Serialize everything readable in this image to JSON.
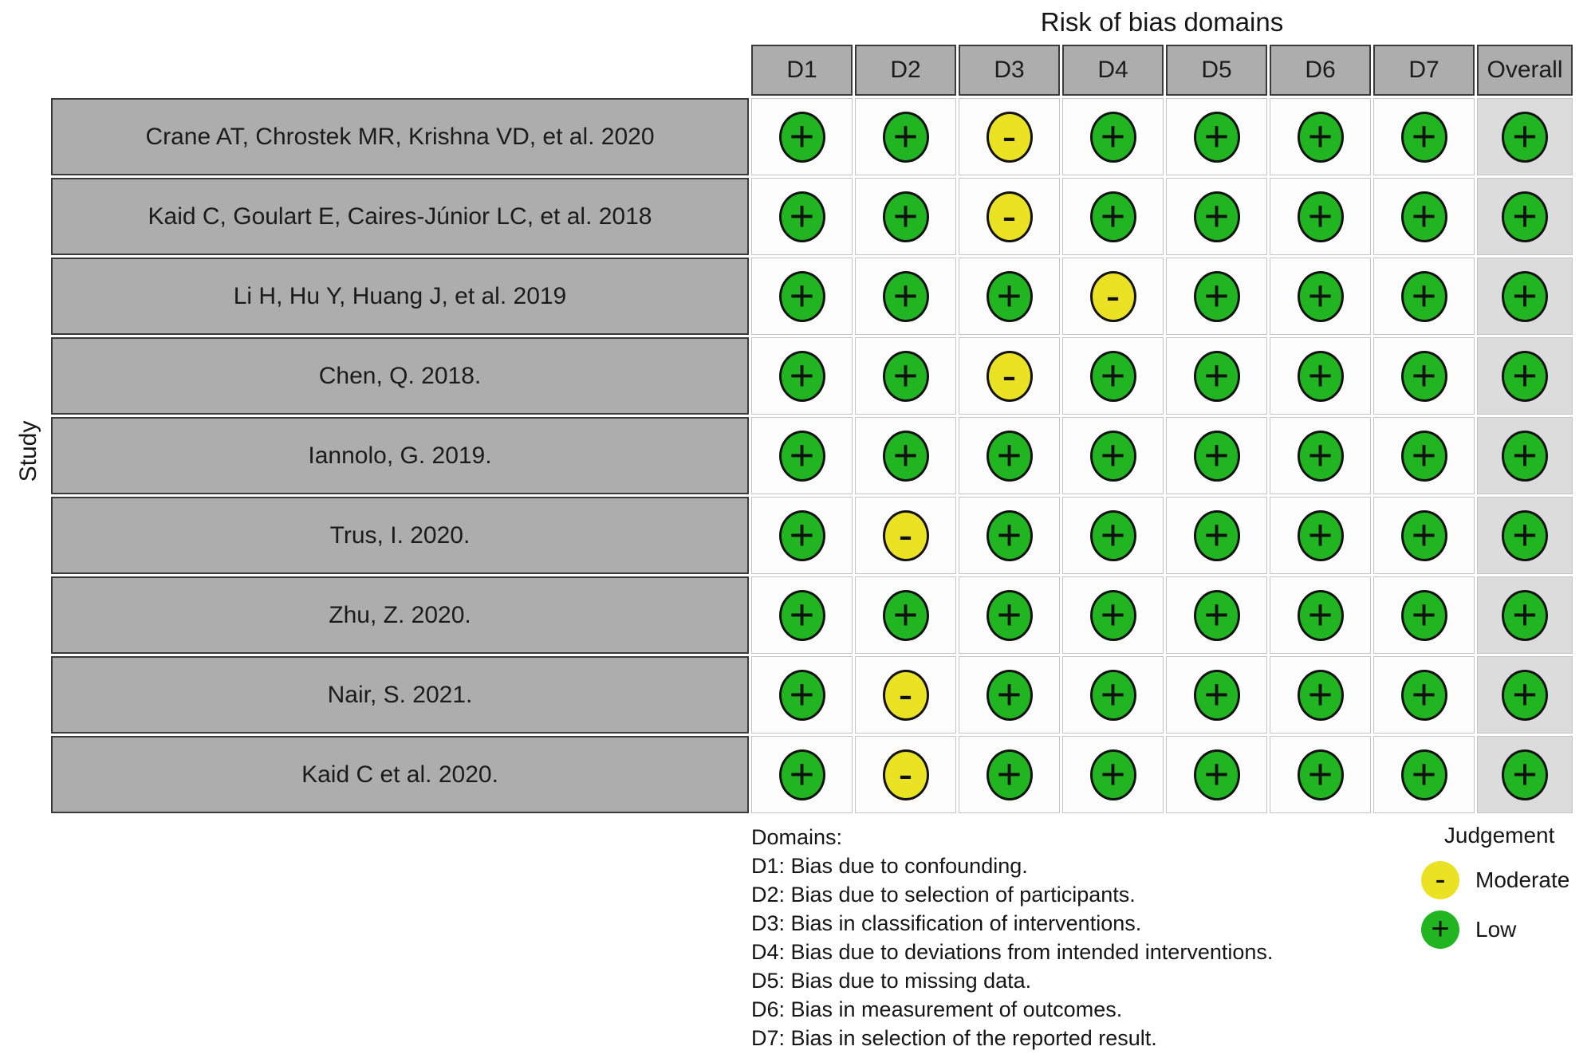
{
  "title": "Risk of bias domains",
  "y_axis_label": "Study",
  "judgement": {
    "low": {
      "symbol": "+",
      "color": "#21b521",
      "label": "Low"
    },
    "moderate": {
      "symbol": "-",
      "color": "#ebe224",
      "label": "Moderate"
    }
  },
  "colors": {
    "header_bg": "#adadad",
    "header_border": "#3a3a3a",
    "cell_bg": "#fdfdfd",
    "cell_border": "#c4c4c4",
    "overall_col_bg": "#dcdcdc",
    "circle_border": "#121212"
  },
  "legend": {
    "domains_title": "Domains:",
    "domain_items": [
      "D1: Bias due to confounding.",
      "D2: Bias due to selection of participants.",
      "D3: Bias in classification of interventions.",
      "D4: Bias due to deviations from intended interventions.",
      "D5: Bias due to missing data.",
      "D6: Bias in measurement of outcomes.",
      "D7: Bias in selection of the reported result."
    ],
    "judgement_title": "Judgement",
    "entries": [
      {
        "judgement": "moderate",
        "label": "Moderate"
      },
      {
        "judgement": "low",
        "label": "Low"
      }
    ]
  },
  "chart_data": {
    "type": "heatmap",
    "title": "Risk of bias domains",
    "ylabel": "Study",
    "x_categories": [
      "D1",
      "D2",
      "D3",
      "D4",
      "D5",
      "D6",
      "D7",
      "Overall"
    ],
    "y_categories": [
      "Crane AT, Chrostek MR, Krishna VD, et al. 2020",
      "Kaid C, Goulart E, Caires-Júnior LC, et al. 2018",
      "Li H, Hu Y, Huang J, et al. 2019",
      "Chen, Q. 2018.",
      "Iannolo, G. 2019.",
      "Trus, I. 2020.",
      "Zhu, Z. 2020.",
      "Nair, S. 2021.",
      "Kaid C et al. 2020."
    ],
    "values": [
      [
        "low",
        "low",
        "moderate",
        "low",
        "low",
        "low",
        "low",
        "low"
      ],
      [
        "low",
        "low",
        "moderate",
        "low",
        "low",
        "low",
        "low",
        "low"
      ],
      [
        "low",
        "low",
        "low",
        "moderate",
        "low",
        "low",
        "low",
        "low"
      ],
      [
        "low",
        "low",
        "moderate",
        "low",
        "low",
        "low",
        "low",
        "low"
      ],
      [
        "low",
        "low",
        "low",
        "low",
        "low",
        "low",
        "low",
        "low"
      ],
      [
        "low",
        "moderate",
        "low",
        "low",
        "low",
        "low",
        "low",
        "low"
      ],
      [
        "low",
        "low",
        "low",
        "low",
        "low",
        "low",
        "low",
        "low"
      ],
      [
        "low",
        "moderate",
        "low",
        "low",
        "low",
        "low",
        "low",
        "low"
      ],
      [
        "low",
        "moderate",
        "low",
        "low",
        "low",
        "low",
        "low",
        "low"
      ]
    ],
    "legend": {
      "low": "Low",
      "moderate": "Moderate"
    },
    "legend_position": "bottom-right",
    "grid": true
  }
}
